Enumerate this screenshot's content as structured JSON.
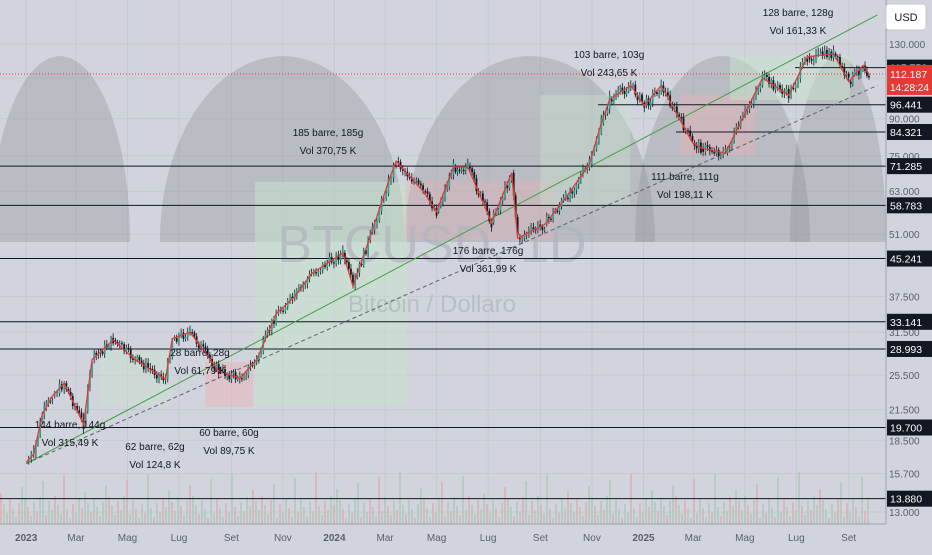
{
  "chart_data": {
    "type": "candlestick",
    "symbol_watermark": "BTCUSD, 1D",
    "name_watermark": "Bitcoin / Dollaro",
    "currency": "USD",
    "y_scale": "log",
    "y_ticks": [
      "130.000",
      "110.000",
      "90.000",
      "75.000",
      "63.000",
      "51.000",
      "37.500",
      "31.500",
      "25.500",
      "21.500",
      "18.500",
      "15.700",
      "13.000"
    ],
    "x_ticks": [
      "2023",
      "Mar",
      "Mag",
      "Lug",
      "Set",
      "Nov",
      "2024",
      "Mar",
      "Mag",
      "Lug",
      "Set",
      "Nov",
      "2025",
      "Mar",
      "Mag",
      "Lug",
      "Set"
    ],
    "current_price": "112.187",
    "countdown": "14:28:24",
    "levels": [
      {
        "label": "115.750",
        "value": 115750
      },
      {
        "label": "96.441",
        "value": 96441
      },
      {
        "label": "84.321",
        "value": 84321
      },
      {
        "label": "71.285",
        "value": 71285
      },
      {
        "label": "58.783",
        "value": 58783
      },
      {
        "label": "45.241",
        "value": 45241
      },
      {
        "label": "33.141",
        "value": 33141
      },
      {
        "label": "28.993",
        "value": 28993
      },
      {
        "label": "19.700",
        "value": 19700
      },
      {
        "label": "13.880",
        "value": 13880
      }
    ],
    "annotations": [
      {
        "line1": "128 barre, 128g",
        "line2": "Vol 161,33 K"
      },
      {
        "line1": "103 barre, 103g",
        "line2": "Vol 243,65 K"
      },
      {
        "line1": "185 barre, 185g",
        "line2": "Vol 370,75 K"
      },
      {
        "line1": "111 barre, 111g",
        "line2": "Vol 198,11 K"
      },
      {
        "line1": "176 barre, 176g",
        "line2": "Vol 361,99 K"
      },
      {
        "line1": "28 barre, 28g",
        "line2": "Vol 61,79 K"
      },
      {
        "line1": "144 barre, 144g",
        "line2": "Vol 315,49 K"
      },
      {
        "line1": "62 barre, 62g",
        "line2": "Vol 124,8 K"
      },
      {
        "line1": "60 barre, 60g",
        "line2": "Vol 89,75 K"
      }
    ],
    "price_path": [
      [
        "2023-01-01",
        16600
      ],
      [
        "2023-01-10",
        17300
      ],
      [
        "2023-01-20",
        21000
      ],
      [
        "2023-02-01",
        23000
      ],
      [
        "2023-02-15",
        24500
      ],
      [
        "2023-03-10",
        20000
      ],
      [
        "2023-03-20",
        27500
      ],
      [
        "2023-04-14",
        30300
      ],
      [
        "2023-05-10",
        27500
      ],
      [
        "2023-06-15",
        25000
      ],
      [
        "2023-06-23",
        30500
      ],
      [
        "2023-07-14",
        31500
      ],
      [
        "2023-08-17",
        26000
      ],
      [
        "2023-09-11",
        25100
      ],
      [
        "2023-10-01",
        27500
      ],
      [
        "2023-10-24",
        34500
      ],
      [
        "2023-11-15",
        37500
      ],
      [
        "2023-12-05",
        42000
      ],
      [
        "2024-01-11",
        46500
      ],
      [
        "2024-01-23",
        39500
      ],
      [
        "2024-02-15",
        52000
      ],
      [
        "2024-03-05",
        66000
      ],
      [
        "2024-03-14",
        73000
      ],
      [
        "2024-04-15",
        63000
      ],
      [
        "2024-05-01",
        57000
      ],
      [
        "2024-05-21",
        71000
      ],
      [
        "2024-06-07",
        71000
      ],
      [
        "2024-07-05",
        54000
      ],
      [
        "2024-07-29",
        69000
      ],
      [
        "2024-08-05",
        50000
      ],
      [
        "2024-09-06",
        53500
      ],
      [
        "2024-10-01",
        61000
      ],
      [
        "2024-10-29",
        72000
      ],
      [
        "2024-11-12",
        88000
      ],
      [
        "2024-11-22",
        99000
      ],
      [
        "2024-12-17",
        106000
      ],
      [
        "2025-01-02",
        96000
      ],
      [
        "2025-01-22",
        106000
      ],
      [
        "2025-02-28",
        80000
      ],
      [
        "2025-03-10",
        78000
      ],
      [
        "2025-04-08",
        76000
      ],
      [
        "2025-05-22",
        110000
      ],
      [
        "2025-06-22",
        101000
      ],
      [
        "2025-07-14",
        122000
      ],
      [
        "2025-08-14",
        124000
      ],
      [
        "2025-09-01",
        108000
      ],
      [
        "2025-09-18",
        117000
      ],
      [
        "2025-09-25",
        112187
      ]
    ],
    "trendlines": [
      {
        "style": "solid",
        "from": [
          "2023-01-01",
          16500
        ],
        "to": [
          "2025-10-05",
          150000
        ]
      },
      {
        "style": "dashed",
        "from": [
          "2023-01-01",
          16500
        ],
        "to": [
          "2025-10-05",
          106000
        ]
      }
    ],
    "grid": true
  }
}
